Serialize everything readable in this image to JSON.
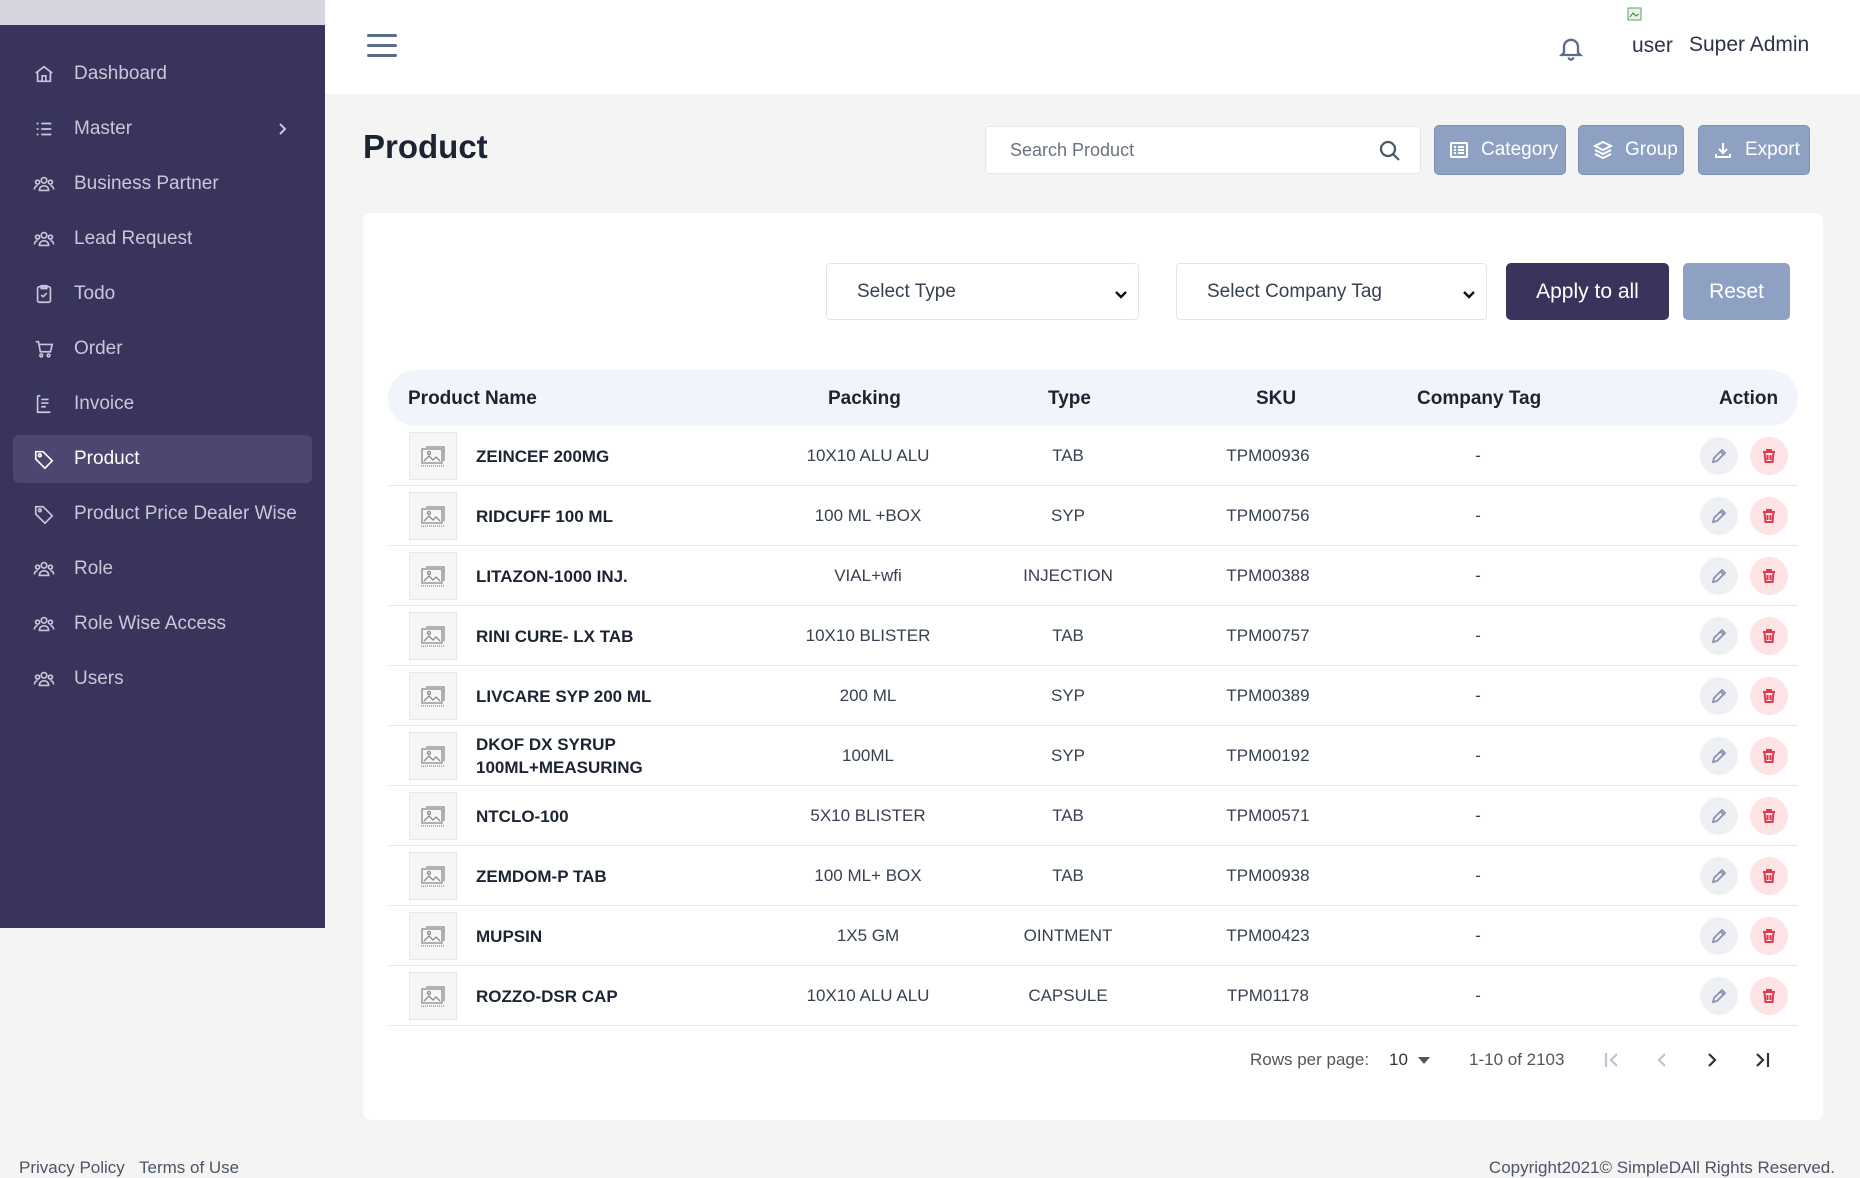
{
  "sidebar": {
    "items": [
      {
        "label": "Dashboard",
        "icon": "home-icon"
      },
      {
        "label": "Master",
        "icon": "list-icon",
        "has_submenu": true
      },
      {
        "label": "Business Partner",
        "icon": "people-icon"
      },
      {
        "label": "Lead Request",
        "icon": "people-icon"
      },
      {
        "label": "Todo",
        "icon": "clipboard-check-icon"
      },
      {
        "label": "Order",
        "icon": "cart-icon"
      },
      {
        "label": "Invoice",
        "icon": "invoice-icon"
      },
      {
        "label": "Product",
        "icon": "tag-icon",
        "active": true
      },
      {
        "label": "Product Price Dealer Wise",
        "icon": "tag-icon"
      },
      {
        "label": "Role",
        "icon": "people-icon"
      },
      {
        "label": "Role Wise Access",
        "icon": "people-icon"
      },
      {
        "label": "Users",
        "icon": "people-icon"
      }
    ]
  },
  "header": {
    "avatar_alt": "user",
    "user_name": "Super Admin"
  },
  "page": {
    "title": "Product",
    "search_placeholder": "Search Product",
    "buttons": {
      "category": "Category",
      "group": "Group",
      "export": "Export"
    }
  },
  "filters": {
    "type_select": "Select Type",
    "company_tag_select": "Select Company Tag",
    "apply_label": "Apply to all",
    "reset_label": "Reset"
  },
  "table": {
    "headers": {
      "product_name": "Product Name",
      "packing": "Packing",
      "type": "Type",
      "sku": "SKU",
      "company_tag": "Company Tag",
      "action": "Action"
    },
    "rows": [
      {
        "name": "ZEINCEF 200MG",
        "packing": "10X10 ALU ALU",
        "type": "TAB",
        "sku": "TPM00936",
        "company_tag": "-"
      },
      {
        "name": "RIDCUFF 100 ML",
        "packing": "100 ML +BOX",
        "type": "SYP",
        "sku": "TPM00756",
        "company_tag": "-"
      },
      {
        "name": "LITAZON-1000 INJ.",
        "packing": "VIAL+wfi",
        "type": "INJECTION",
        "sku": "TPM00388",
        "company_tag": "-"
      },
      {
        "name": "RINI CURE- LX TAB",
        "packing": "10X10 BLISTER",
        "type": "TAB",
        "sku": "TPM00757",
        "company_tag": "-"
      },
      {
        "name": "LIVCARE SYP 200 ML",
        "packing": "200 ML",
        "type": "SYP",
        "sku": "TPM00389",
        "company_tag": "-"
      },
      {
        "name": "DKOF DX SYRUP 100ML+MEASURING",
        "packing": "100ML",
        "type": "SYP",
        "sku": "TPM00192",
        "company_tag": "-"
      },
      {
        "name": "NTCLO-100",
        "packing": "5X10 BLISTER",
        "type": "TAB",
        "sku": "TPM00571",
        "company_tag": "-"
      },
      {
        "name": "ZEMDOM-P TAB",
        "packing": "100 ML+ BOX",
        "type": "TAB",
        "sku": "TPM00938",
        "company_tag": "-"
      },
      {
        "name": "MUPSIN",
        "packing": "1X5 GM",
        "type": "OINTMENT",
        "sku": "TPM00423",
        "company_tag": "-"
      },
      {
        "name": "ROZZO-DSR CAP",
        "packing": "10X10 ALU ALU",
        "type": "CAPSULE",
        "sku": "TPM01178",
        "company_tag": "-"
      }
    ]
  },
  "pagination": {
    "rows_per_page_label": "Rows per page:",
    "rows_per_page": "10",
    "range": "1-10 of 2103"
  },
  "footer": {
    "privacy": "Privacy Policy",
    "terms": "Terms of Use",
    "copyright": "Copyright2021© SimpleDAll Rights Reserved."
  },
  "colors": {
    "sidebar_bg": "#38345c",
    "accent_button": "#8ea1c3",
    "primary_button": "#38345c",
    "delete": "#e03a4e"
  }
}
